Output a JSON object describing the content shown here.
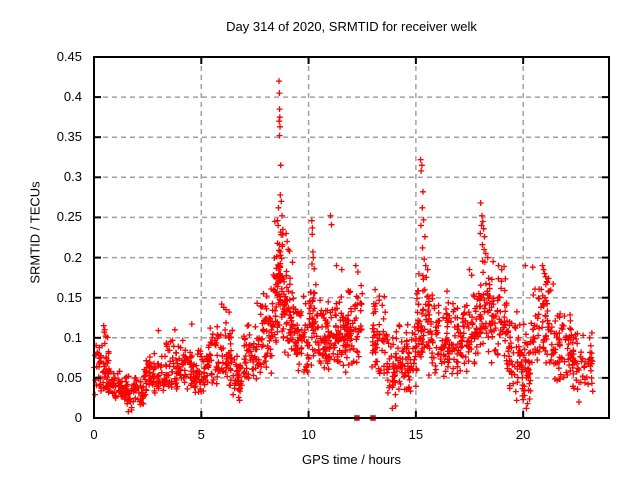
{
  "chart_data": {
    "type": "scatter",
    "title": "Day 314 of 2020, SRMTID for receiver welk",
    "xlabel": "GPS time / hours",
    "ylabel": "SRMTID / TECUs",
    "xlim": [
      0,
      24
    ],
    "ylim": [
      0,
      0.45
    ],
    "xticks": [
      {
        "v": 0,
        "label": "0"
      },
      {
        "v": 5,
        "label": "5"
      },
      {
        "v": 10,
        "label": "10"
      },
      {
        "v": 15,
        "label": "15"
      },
      {
        "v": 20,
        "label": "20"
      }
    ],
    "yticks": [
      {
        "v": 0,
        "label": "0"
      },
      {
        "v": 0.05,
        "label": "0.05"
      },
      {
        "v": 0.1,
        "label": "0.1"
      },
      {
        "v": 0.15,
        "label": "0.15"
      },
      {
        "v": 0.2,
        "label": "0.2"
      },
      {
        "v": 0.25,
        "label": "0.25"
      },
      {
        "v": 0.3,
        "label": "0.3"
      },
      {
        "v": 0.35,
        "label": "0.35"
      },
      {
        "v": 0.4,
        "label": "0.4"
      },
      {
        "v": 0.45,
        "label": "0.45"
      }
    ],
    "grid": {
      "style": "dashed",
      "color": "#a0a0a0"
    },
    "colors": {
      "series": "#ff0000",
      "axis": "#000000",
      "background": "#ffffff"
    },
    "legend": "none",
    "series": [
      {
        "name": "srmtid-points",
        "marker": "plus",
        "color": "#ff0000",
        "seed": 314,
        "bands": [
          [
            0.0,
            0.35,
            0.025,
            0.095,
            25
          ],
          [
            0.3,
            0.7,
            0.03,
            0.105,
            30
          ],
          [
            0.6,
            1.2,
            0.02,
            0.075,
            40
          ],
          [
            1.2,
            2.3,
            0.012,
            0.06,
            80
          ],
          [
            2.3,
            3.2,
            0.025,
            0.085,
            60
          ],
          [
            3.2,
            4.3,
            0.03,
            0.1,
            75
          ],
          [
            4.3,
            5.3,
            0.03,
            0.09,
            70
          ],
          [
            5.3,
            6.45,
            0.035,
            0.13,
            80
          ],
          [
            6.45,
            6.95,
            0.02,
            0.08,
            35
          ],
          [
            6.95,
            7.75,
            0.04,
            0.125,
            55
          ],
          [
            7.75,
            8.35,
            0.05,
            0.165,
            50
          ],
          [
            8.35,
            8.85,
            0.09,
            0.25,
            60
          ],
          [
            8.55,
            8.8,
            0.13,
            0.24,
            25
          ],
          [
            8.85,
            9.35,
            0.07,
            0.22,
            55
          ],
          [
            9.35,
            10.05,
            0.05,
            0.155,
            60
          ],
          [
            10.05,
            10.45,
            0.06,
            0.185,
            40
          ],
          [
            10.45,
            11.15,
            0.05,
            0.155,
            65
          ],
          [
            11.15,
            11.8,
            0.055,
            0.165,
            65
          ],
          [
            11.8,
            12.35,
            0.06,
            0.175,
            50
          ],
          [
            12.4,
            12.6,
            0.1,
            0.165,
            8
          ],
          [
            12.95,
            13.65,
            0.05,
            0.16,
            55
          ],
          [
            13.65,
            14.35,
            0.02,
            0.12,
            55
          ],
          [
            14.35,
            15.05,
            0.03,
            0.125,
            55
          ],
          [
            15.05,
            15.5,
            0.07,
            0.19,
            45
          ],
          [
            15.5,
            16.1,
            0.05,
            0.17,
            50
          ],
          [
            16.1,
            17.1,
            0.045,
            0.15,
            75
          ],
          [
            17.1,
            17.85,
            0.055,
            0.165,
            60
          ],
          [
            17.85,
            18.45,
            0.08,
            0.21,
            55
          ],
          [
            18.45,
            19.25,
            0.06,
            0.2,
            60
          ],
          [
            19.25,
            19.95,
            0.03,
            0.14,
            55
          ],
          [
            19.95,
            20.35,
            0.015,
            0.125,
            40
          ],
          [
            20.35,
            21.3,
            0.06,
            0.185,
            70
          ],
          [
            21.3,
            22.3,
            0.04,
            0.14,
            70
          ],
          [
            22.3,
            23.25,
            0.03,
            0.11,
            60
          ]
        ],
        "outliers": [
          [
            0.45,
            0.115
          ],
          [
            0.5,
            0.11
          ],
          [
            0.48,
            0.107
          ],
          [
            0.55,
            0.102
          ],
          [
            1.6,
            0.008
          ],
          [
            1.75,
            0.01
          ],
          [
            3.0,
            0.109
          ],
          [
            3.77,
            0.11
          ],
          [
            4.56,
            0.117
          ],
          [
            5.95,
            0.142
          ],
          [
            6.05,
            0.138
          ],
          [
            6.15,
            0.135
          ],
          [
            6.3,
            0.132
          ],
          [
            7.6,
            0.143
          ],
          [
            7.9,
            0.155
          ],
          [
            8.05,
            0.152
          ],
          [
            8.62,
            0.42
          ],
          [
            8.64,
            0.405
          ],
          [
            8.65,
            0.385
          ],
          [
            8.66,
            0.375
          ],
          [
            8.63,
            0.37
          ],
          [
            8.67,
            0.363
          ],
          [
            8.65,
            0.352
          ],
          [
            8.7,
            0.315
          ],
          [
            8.68,
            0.278
          ],
          [
            8.73,
            0.27
          ],
          [
            8.6,
            0.262
          ],
          [
            8.76,
            0.252
          ],
          [
            8.55,
            0.246
          ],
          [
            8.58,
            0.24
          ],
          [
            8.8,
            0.235
          ],
          [
            8.95,
            0.23
          ],
          [
            9.0,
            0.22
          ],
          [
            9.05,
            0.21
          ],
          [
            10.15,
            0.246
          ],
          [
            10.18,
            0.237
          ],
          [
            10.17,
            0.229
          ],
          [
            10.2,
            0.207
          ],
          [
            10.22,
            0.2
          ],
          [
            10.16,
            0.192
          ],
          [
            10.26,
            0.186
          ],
          [
            11.02,
            0.252
          ],
          [
            11.07,
            0.241
          ],
          [
            11.3,
            0.19
          ],
          [
            11.55,
            0.185
          ],
          [
            12.2,
            0.19
          ],
          [
            12.3,
            0.182
          ],
          [
            12.45,
            0.165
          ],
          [
            12.5,
            0.155
          ],
          [
            13.1,
            0.16
          ],
          [
            13.3,
            0.152
          ],
          [
            13.9,
            0.012
          ],
          [
            14.05,
            0.015
          ],
          [
            15.22,
            0.322
          ],
          [
            15.28,
            0.315
          ],
          [
            15.25,
            0.308
          ],
          [
            15.33,
            0.282
          ],
          [
            15.3,
            0.262
          ],
          [
            15.36,
            0.247
          ],
          [
            15.24,
            0.24
          ],
          [
            15.42,
            0.226
          ],
          [
            15.31,
            0.212
          ],
          [
            15.39,
            0.198
          ],
          [
            15.46,
            0.19
          ],
          [
            15.55,
            0.185
          ],
          [
            16.45,
            0.158
          ],
          [
            17.5,
            0.185
          ],
          [
            17.6,
            0.178
          ],
          [
            18.02,
            0.268
          ],
          [
            18.08,
            0.252
          ],
          [
            18.12,
            0.245
          ],
          [
            18.06,
            0.24
          ],
          [
            18.16,
            0.236
          ],
          [
            18.0,
            0.23
          ],
          [
            18.2,
            0.226
          ],
          [
            18.1,
            0.216
          ],
          [
            18.18,
            0.21
          ],
          [
            18.26,
            0.205
          ],
          [
            18.35,
            0.2
          ],
          [
            18.6,
            0.195
          ],
          [
            18.85,
            0.19
          ],
          [
            19.0,
            0.185
          ],
          [
            19.7,
            0.022
          ],
          [
            20.1,
            0.19
          ],
          [
            20.15,
            0.012
          ],
          [
            20.2,
            0.018
          ],
          [
            20.45,
            0.188
          ],
          [
            20.9,
            0.19
          ],
          [
            20.95,
            0.185
          ],
          [
            21.0,
            0.18
          ],
          [
            21.05,
            0.176
          ],
          [
            21.1,
            0.17
          ],
          [
            21.4,
            0.167
          ],
          [
            22.6,
            0.02
          ],
          [
            23.1,
            0.1
          ],
          [
            23.15,
            0.09
          ]
        ]
      },
      {
        "name": "gap-markers",
        "marker": "filled-square",
        "color": "#ff0000",
        "points": [
          [
            12.25,
            0
          ],
          [
            13.0,
            0
          ]
        ]
      }
    ]
  }
}
